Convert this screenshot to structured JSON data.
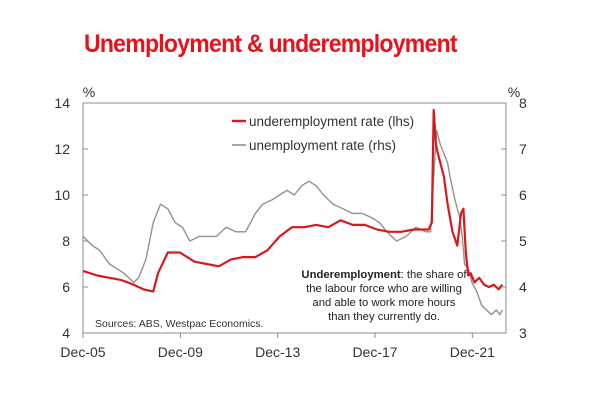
{
  "title": "Unemployment & underemployment",
  "chart_data": {
    "type": "line",
    "y_left": {
      "unit": "%",
      "ylim": [
        4,
        14
      ],
      "ticks": [
        "4",
        "6",
        "8",
        "10",
        "12",
        "14"
      ]
    },
    "y_right": {
      "unit": "%",
      "ylim": [
        3,
        8
      ],
      "ticks": [
        "3",
        "4",
        "5",
        "6",
        "7",
        "8"
      ]
    },
    "x_ticks": [
      {
        "label": "Dec-05",
        "year": 2005.917
      },
      {
        "label": "Dec-09",
        "year": 2009.917
      },
      {
        "label": "Dec-13",
        "year": 2013.917
      },
      {
        "label": "Dec-17",
        "year": 2017.917
      },
      {
        "label": "Dec-21",
        "year": 2021.917
      }
    ],
    "xlim": [
      2005.917,
      2023.3
    ],
    "legend_position": "top-center",
    "series": [
      {
        "name": "underemployment rate (lhs)",
        "axis": "left",
        "color": "#d7191f",
        "x": [
          2005.92,
          2006.5,
          2007.0,
          2007.5,
          2008.0,
          2008.4,
          2008.8,
          2009.0,
          2009.4,
          2009.9,
          2010.5,
          2011.0,
          2011.5,
          2012.0,
          2012.5,
          2013.0,
          2013.5,
          2014.0,
          2014.5,
          2015.0,
          2015.5,
          2016.0,
          2016.5,
          2017.0,
          2017.5,
          2018.0,
          2018.5,
          2019.0,
          2019.5,
          2020.0,
          2020.12,
          2020.25,
          2020.33,
          2020.42,
          2020.5,
          2020.6,
          2020.75,
          2020.9,
          2021.1,
          2021.3,
          2021.45,
          2021.55,
          2021.65,
          2021.75,
          2021.85,
          2022.0,
          2022.2,
          2022.4,
          2022.6,
          2022.8,
          2023.0,
          2023.15
        ],
        "y": [
          6.7,
          6.5,
          6.4,
          6.3,
          6.1,
          5.9,
          5.8,
          6.6,
          7.5,
          7.5,
          7.1,
          7.0,
          6.9,
          7.2,
          7.3,
          7.3,
          7.6,
          8.2,
          8.6,
          8.6,
          8.7,
          8.6,
          8.9,
          8.7,
          8.7,
          8.5,
          8.4,
          8.4,
          8.5,
          8.5,
          8.5,
          8.8,
          13.7,
          12.2,
          11.8,
          11.4,
          10.8,
          9.6,
          8.4,
          7.8,
          9.2,
          9.4,
          7.5,
          6.5,
          6.6,
          6.2,
          6.4,
          6.1,
          6.0,
          6.1,
          5.9,
          6.1
        ]
      },
      {
        "name": "unemployment rate (rhs)",
        "axis": "right",
        "color": "#9a8f85",
        "x": [
          2005.92,
          2006.3,
          2006.6,
          2007.0,
          2007.3,
          2007.6,
          2008.0,
          2008.2,
          2008.5,
          2008.8,
          2009.1,
          2009.4,
          2009.7,
          2010.0,
          2010.3,
          2010.7,
          2011.0,
          2011.4,
          2011.8,
          2012.2,
          2012.6,
          2013.0,
          2013.3,
          2013.7,
          2014.0,
          2014.3,
          2014.6,
          2014.9,
          2015.2,
          2015.5,
          2015.8,
          2016.2,
          2016.6,
          2017.0,
          2017.4,
          2017.8,
          2018.1,
          2018.4,
          2018.8,
          2019.2,
          2019.6,
          2020.0,
          2020.2,
          2020.33,
          2020.45,
          2020.6,
          2020.75,
          2020.9,
          2021.0,
          2021.2,
          2021.4,
          2021.5,
          2021.6,
          2021.75,
          2021.9,
          2022.1,
          2022.3,
          2022.5,
          2022.7,
          2022.9,
          2023.05,
          2023.15
        ],
        "y": [
          5.1,
          4.9,
          4.8,
          4.5,
          4.4,
          4.3,
          4.1,
          4.2,
          4.6,
          5.4,
          5.8,
          5.7,
          5.4,
          5.3,
          5.0,
          5.1,
          5.1,
          5.1,
          5.3,
          5.2,
          5.2,
          5.6,
          5.8,
          5.9,
          6.0,
          6.1,
          6.0,
          6.2,
          6.3,
          6.2,
          6.0,
          5.8,
          5.7,
          5.6,
          5.6,
          5.5,
          5.4,
          5.2,
          5.0,
          5.1,
          5.3,
          5.2,
          5.2,
          6.4,
          7.4,
          7.1,
          6.9,
          6.7,
          6.4,
          5.9,
          5.5,
          5.1,
          4.5,
          4.4,
          4.1,
          3.9,
          3.6,
          3.5,
          3.4,
          3.5,
          3.4,
          3.5
        ]
      }
    ]
  },
  "annotation": {
    "bold": "Underemployment",
    "line1_rest": ": the share of",
    "line2": "the labour force who are willing",
    "line3": "and able to work more hours",
    "line4": "than they currently do."
  },
  "source": "Sources: ABS, Westpac Economics."
}
